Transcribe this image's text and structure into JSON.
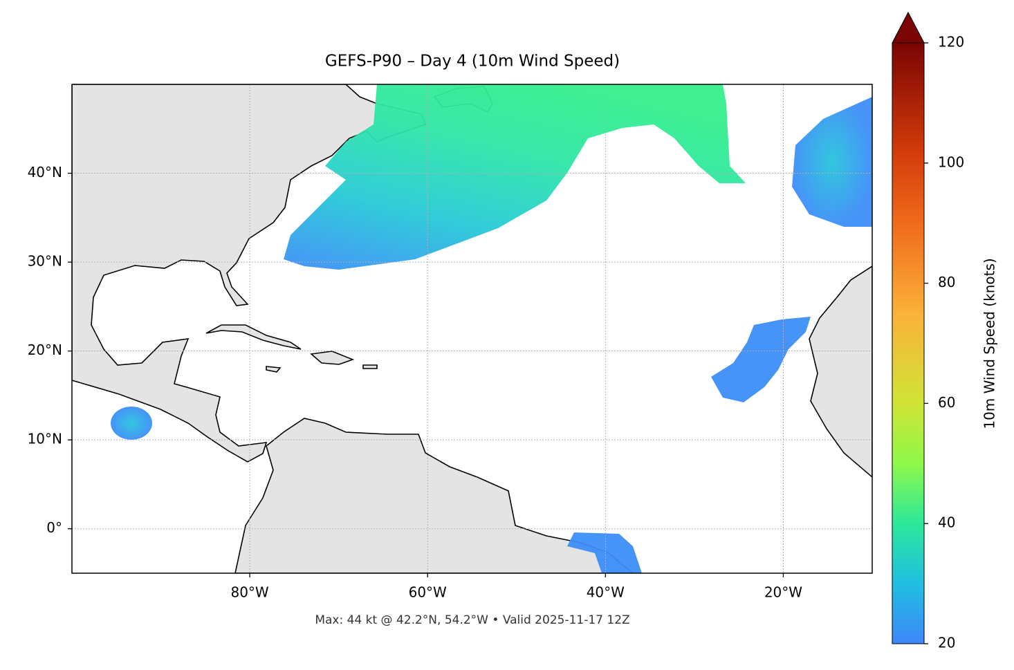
{
  "header": {
    "title": "GEFS-P90 – Day 4 (10m Wind Speed)"
  },
  "map": {
    "xlim": [
      -100,
      -10
    ],
    "ylim": [
      -5,
      50
    ],
    "xticks": [
      {
        "value": -80,
        "label": "80°W"
      },
      {
        "value": -60,
        "label": "60°W"
      },
      {
        "value": -40,
        "label": "40°W"
      },
      {
        "value": -20,
        "label": "20°W"
      }
    ],
    "yticks": [
      {
        "value": 0,
        "label": "0°"
      },
      {
        "value": 10,
        "label": "10°N"
      },
      {
        "value": 20,
        "label": "20°N"
      },
      {
        "value": 30,
        "label": "30°N"
      },
      {
        "value": 40,
        "label": "40°N"
      }
    ],
    "grid": true,
    "footer": "Max: 44 kt @ 42.2°N, 54.2°W • Valid 2025-11-17 12Z"
  },
  "colorbar": {
    "label": "10m Wind Speed (knots)",
    "lim": [
      20,
      120
    ],
    "ticks": [
      20,
      40,
      60,
      80,
      100,
      120
    ],
    "extend": "max"
  }
}
